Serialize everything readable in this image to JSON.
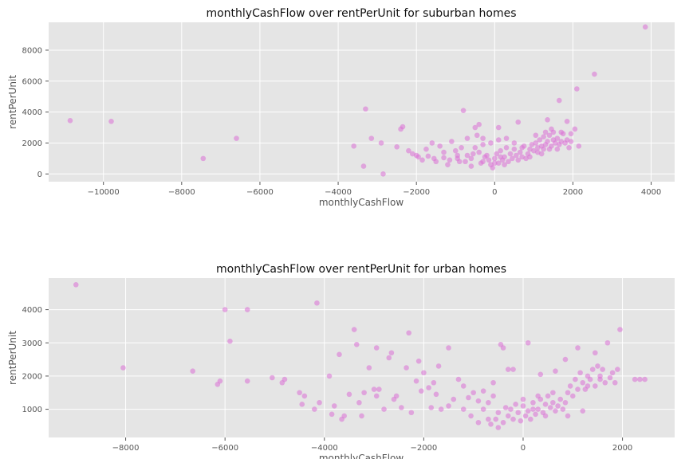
{
  "style": {
    "background": "#e5e5e5",
    "grid_color": "#ffffff",
    "point_color": "#da70d6",
    "point_opacity": 0.55
  },
  "chart_data": [
    {
      "type": "scatter",
      "title": "monthlyCashFlow over rentPerUnit for suburban homes",
      "xlabel": "monthlyCashFlow",
      "ylabel": "rentPerUnit",
      "xlim": [
        -11400,
        4600
      ],
      "ylim": [
        -500,
        9800
      ],
      "xticks": [
        -10000,
        -8000,
        -6000,
        -4000,
        -2000,
        0,
        2000,
        4000
      ],
      "yticks": [
        0,
        2000,
        4000,
        6000,
        8000
      ],
      "grid": true,
      "points": [
        [
          -10850,
          3450
        ],
        [
          -9800,
          3400
        ],
        [
          -7450,
          1000
        ],
        [
          -6600,
          2300
        ],
        [
          -3300,
          4200
        ],
        [
          -3600,
          1800
        ],
        [
          -3150,
          2300
        ],
        [
          -2900,
          2000
        ],
        [
          -3350,
          500
        ],
        [
          -2850,
          0
        ],
        [
          -2400,
          2900
        ],
        [
          -2350,
          3050
        ],
        [
          -2500,
          1750
        ],
        [
          -800,
          4100
        ],
        [
          -500,
          3000
        ],
        [
          -400,
          3200
        ],
        [
          100,
          3000
        ],
        [
          1350,
          3500
        ],
        [
          1650,
          4750
        ],
        [
          1850,
          3400
        ],
        [
          2100,
          5500
        ],
        [
          2550,
          6450
        ],
        [
          3850,
          9500
        ],
        [
          600,
          3350
        ],
        [
          2050,
          2900
        ],
        [
          2150,
          1800
        ],
        [
          1950,
          2600
        ],
        [
          -2200,
          1500
        ],
        [
          -2000,
          1200
        ],
        [
          -1850,
          900
        ],
        [
          -1700,
          1150
        ],
        [
          -1500,
          800
        ],
        [
          -1300,
          1050
        ],
        [
          -1200,
          600
        ],
        [
          -1000,
          1500
        ],
        [
          -900,
          800
        ],
        [
          -700,
          1200
        ],
        [
          -600,
          500
        ],
        [
          -1600,
          2000
        ],
        [
          -1400,
          1800
        ],
        [
          -1100,
          2100
        ],
        [
          -850,
          1700
        ],
        [
          -700,
          2300
        ],
        [
          -450,
          2500
        ],
        [
          -300,
          1900
        ],
        [
          -1950,
          1100
        ],
        [
          -2100,
          1300
        ],
        [
          -1750,
          1600
        ],
        [
          -1550,
          1000
        ],
        [
          -1300,
          1400
        ],
        [
          -1150,
          900
        ],
        [
          -950,
          1200
        ],
        [
          -600,
          1000
        ],
        [
          -500,
          1700
        ],
        [
          -400,
          1400
        ],
        [
          -300,
          800
        ],
        [
          -200,
          1200
        ],
        [
          -100,
          600
        ],
        [
          0,
          1000
        ],
        [
          50,
          1300
        ],
        [
          100,
          700
        ],
        [
          150,
          1500
        ],
        [
          200,
          900
        ],
        [
          250,
          1100
        ],
        [
          300,
          1700
        ],
        [
          350,
          800
        ],
        [
          400,
          1300
        ],
        [
          450,
          1000
        ],
        [
          500,
          1600
        ],
        [
          550,
          1200
        ],
        [
          600,
          900
        ],
        [
          650,
          1400
        ],
        [
          700,
          1100
        ],
        [
          750,
          1800
        ],
        [
          800,
          1000
        ],
        [
          850,
          1300
        ],
        [
          900,
          1600
        ],
        [
          950,
          1900
        ],
        [
          1000,
          1500
        ],
        [
          1050,
          2000
        ],
        [
          1100,
          1700
        ],
        [
          1150,
          2200
        ],
        [
          1200,
          1800
        ],
        [
          1250,
          2400
        ],
        [
          1300,
          1900
        ],
        [
          1350,
          2100
        ],
        [
          1400,
          2500
        ],
        [
          1450,
          1800
        ],
        [
          1500,
          2200
        ],
        [
          1550,
          2000
        ],
        [
          1600,
          2300
        ],
        [
          1650,
          1900
        ],
        [
          1700,
          2100
        ],
        [
          1750,
          2600
        ],
        [
          1800,
          2000
        ],
        [
          1850,
          2200
        ],
        [
          1900,
          1700
        ],
        [
          1950,
          2100
        ],
        [
          1200,
          1300
        ],
        [
          1100,
          1400
        ],
        [
          900,
          1100
        ],
        [
          700,
          1700
        ],
        [
          500,
          2000
        ],
        [
          300,
          2300
        ],
        [
          100,
          2200
        ],
        [
          -100,
          2000
        ],
        [
          -300,
          2300
        ],
        [
          -550,
          1300
        ],
        [
          -750,
          800
        ],
        [
          -950,
          1000
        ],
        [
          -250,
          1100
        ],
        [
          -150,
          900
        ],
        [
          0,
          700
        ],
        [
          150,
          1100
        ],
        [
          250,
          600
        ],
        [
          1300,
          2700
        ],
        [
          1500,
          2700
        ],
        [
          1700,
          2700
        ],
        [
          -350,
          700
        ],
        [
          -50,
          400
        ],
        [
          1400,
          1600
        ],
        [
          1600,
          1600
        ],
        [
          1250,
          1600
        ],
        [
          1050,
          2500
        ],
        [
          1450,
          2900
        ]
      ]
    },
    {
      "type": "scatter",
      "title": "monthlyCashFlow over rentPerUnit for urban homes",
      "xlabel": "monthlyCashFlow",
      "ylabel": "rentPerUnit",
      "xlim": [
        -9550,
        3050
      ],
      "ylim": [
        150,
        4950
      ],
      "xticks": [
        -8000,
        -6000,
        -4000,
        -2000,
        0,
        2000
      ],
      "yticks": [
        1000,
        2000,
        3000,
        4000
      ],
      "grid": true,
      "points": [
        [
          -9000,
          4750
        ],
        [
          -8050,
          2250
        ],
        [
          -6650,
          2150
        ],
        [
          -6150,
          1750
        ],
        [
          -6100,
          1850
        ],
        [
          -6000,
          4000
        ],
        [
          -5900,
          3050
        ],
        [
          -5550,
          4000
        ],
        [
          -5550,
          1850
        ],
        [
          -5050,
          1950
        ],
        [
          -4850,
          1800
        ],
        [
          -4800,
          1900
        ],
        [
          -4500,
          1500
        ],
        [
          -4450,
          1150
        ],
        [
          -4400,
          1400
        ],
        [
          -4200,
          1000
        ],
        [
          -4100,
          1200
        ],
        [
          -4150,
          4200
        ],
        [
          -3900,
          2000
        ],
        [
          -3850,
          850
        ],
        [
          -3650,
          700
        ],
        [
          -3700,
          2650
        ],
        [
          -3600,
          800
        ],
        [
          -3400,
          3400
        ],
        [
          -3350,
          2950
        ],
        [
          -3300,
          1200
        ],
        [
          -3200,
          1500
        ],
        [
          -3100,
          2250
        ],
        [
          -2950,
          2850
        ],
        [
          -2900,
          1600
        ],
        [
          -2700,
          2550
        ],
        [
          -2650,
          2700
        ],
        [
          -2550,
          1400
        ],
        [
          -2300,
          3300
        ],
        [
          -2350,
          2250
        ],
        [
          -2100,
          2450
        ],
        [
          -2150,
          1850
        ],
        [
          -2000,
          2100
        ],
        [
          -1900,
          1650
        ],
        [
          -1800,
          1800
        ],
        [
          -1750,
          1450
        ],
        [
          -1700,
          2300
        ],
        [
          -1500,
          2850
        ],
        [
          -1400,
          1300
        ],
        [
          -1300,
          1900
        ],
        [
          -1200,
          1000
        ],
        [
          -1100,
          1350
        ],
        [
          -1000,
          1500
        ],
        [
          -900,
          1250
        ],
        [
          -800,
          1550
        ],
        [
          -700,
          1200
        ],
        [
          -600,
          1400
        ],
        [
          -500,
          900
        ],
        [
          -450,
          2950
        ],
        [
          -400,
          2850
        ],
        [
          -300,
          2200
        ],
        [
          -2600,
          1300
        ],
        [
          -2800,
          1000
        ],
        [
          -3000,
          1600
        ],
        [
          -3500,
          1450
        ],
        [
          -3800,
          1100
        ],
        [
          -1050,
          800
        ],
        [
          -900,
          600
        ],
        [
          -700,
          700
        ],
        [
          -500,
          450
        ],
        [
          -400,
          600
        ],
        [
          -300,
          800
        ],
        [
          -250,
          1000
        ],
        [
          -200,
          700
        ],
        [
          -100,
          900
        ],
        [
          -50,
          650
        ],
        [
          0,
          1100
        ],
        [
          50,
          800
        ],
        [
          100,
          950
        ],
        [
          150,
          700
        ],
        [
          200,
          1200
        ],
        [
          250,
          850
        ],
        [
          300,
          1000
        ],
        [
          350,
          1300
        ],
        [
          400,
          900
        ],
        [
          450,
          1150
        ],
        [
          500,
          1400
        ],
        [
          550,
          1050
        ],
        [
          600,
          1200
        ],
        [
          650,
          950
        ],
        [
          700,
          1100
        ],
        [
          750,
          1300
        ],
        [
          800,
          1000
        ],
        [
          850,
          1200
        ],
        [
          900,
          1500
        ],
        [
          950,
          1700
        ],
        [
          1000,
          1400
        ],
        [
          1050,
          1900
        ],
        [
          1100,
          1600
        ],
        [
          1150,
          2100
        ],
        [
          1200,
          1800
        ],
        [
          1250,
          1600
        ],
        [
          1300,
          2000
        ],
        [
          1350,
          1900
        ],
        [
          1400,
          2200
        ],
        [
          1450,
          1700
        ],
        [
          1500,
          2300
        ],
        [
          1550,
          2000
        ],
        [
          1600,
          2200
        ],
        [
          1650,
          1800
        ],
        [
          1700,
          3000
        ],
        [
          1800,
          2100
        ],
        [
          1850,
          1800
        ],
        [
          1950,
          3400
        ],
        [
          2250,
          1900
        ],
        [
          2350,
          1900
        ],
        [
          2450,
          1900
        ],
        [
          1450,
          2700
        ],
        [
          1100,
          2850
        ],
        [
          850,
          2500
        ],
        [
          650,
          2150
        ],
        [
          350,
          2050
        ],
        [
          100,
          3000
        ],
        [
          -200,
          2200
        ],
        [
          -600,
          1800
        ],
        [
          -800,
          1000
        ],
        [
          -1200,
          1700
        ],
        [
          -1500,
          1100
        ],
        [
          -1650,
          1000
        ],
        [
          -1850,
          1050
        ],
        [
          -2050,
          1550
        ],
        [
          -2250,
          900
        ],
        [
          -2450,
          1050
        ],
        [
          -2950,
          1400
        ],
        [
          -3250,
          800
        ],
        [
          1200,
          950
        ],
        [
          900,
          800
        ],
        [
          600,
          1500
        ],
        [
          300,
          1400
        ],
        [
          0,
          1300
        ],
        [
          -150,
          1150
        ],
        [
          -350,
          1050
        ],
        [
          -550,
          700
        ],
        [
          -650,
          550
        ],
        [
          1750,
          1950
        ],
        [
          1900,
          2200
        ],
        [
          1550,
          1900
        ],
        [
          1300,
          1700
        ],
        [
          200,
          1000
        ],
        [
          450,
          800
        ]
      ]
    }
  ]
}
